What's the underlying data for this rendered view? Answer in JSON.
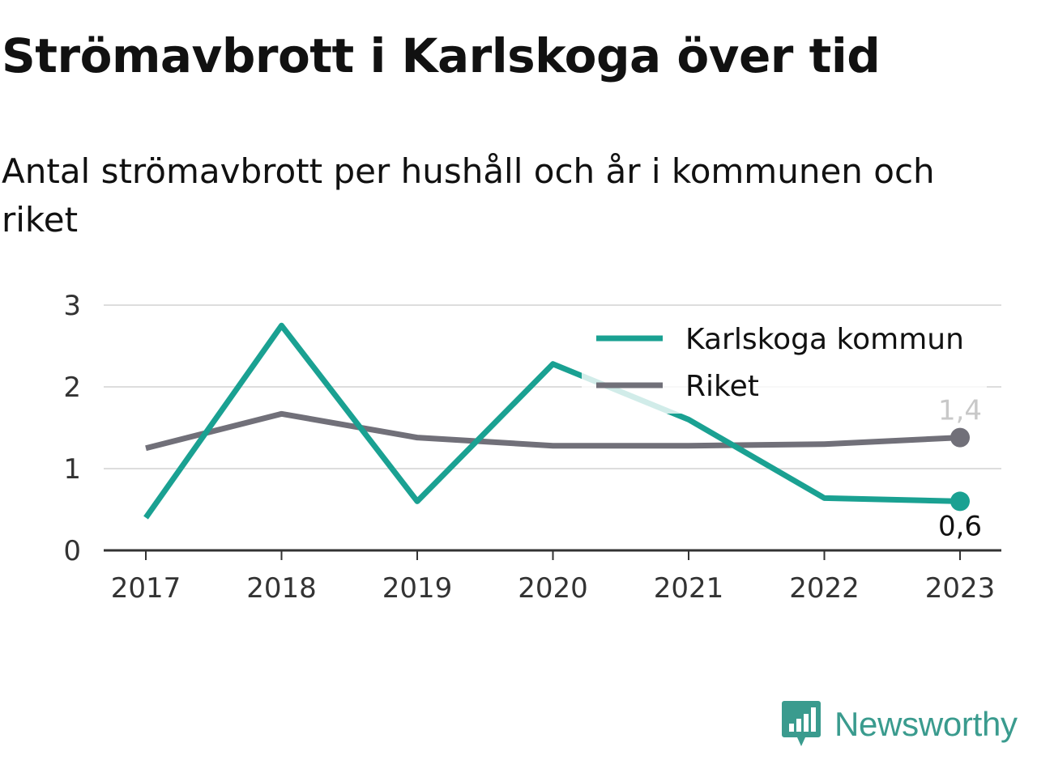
{
  "header": {
    "title": "Strömavbrott i Karlskoga över tid",
    "subtitle": "Antal strömavbrott per hushåll och år i kommunen och riket"
  },
  "brand": {
    "name": "Newsworthy",
    "icon": "newsworthy-logo-icon",
    "color": "#3a9b8e"
  },
  "chart_data": {
    "type": "line",
    "x": [
      "2017",
      "2018",
      "2019",
      "2020",
      "2021",
      "2022",
      "2023"
    ],
    "ylim": [
      0,
      3
    ],
    "yticks": [
      "0",
      "1",
      "2",
      "3"
    ],
    "grid": true,
    "legend_position": "top-right",
    "series": [
      {
        "name": "Karlskoga kommun",
        "color": "#1aa192",
        "values": [
          0.4,
          2.75,
          0.6,
          2.28,
          1.6,
          0.64,
          0.6
        ],
        "end_label": "0,6"
      },
      {
        "name": "Riket",
        "color": "#717079",
        "values": [
          1.25,
          1.67,
          1.38,
          1.28,
          1.28,
          1.3,
          1.38
        ],
        "end_label": "1,4"
      }
    ]
  }
}
